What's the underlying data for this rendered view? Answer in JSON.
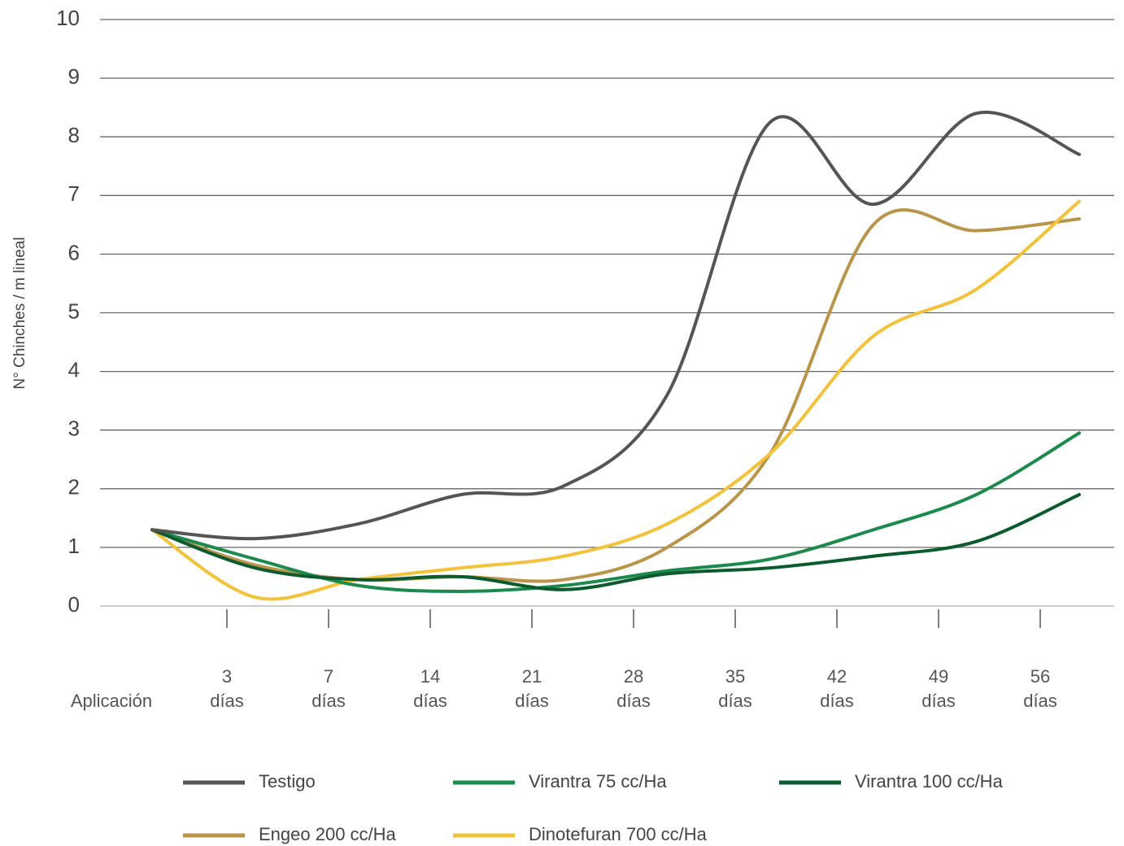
{
  "chart_data": {
    "type": "line",
    "ylabel": "N° Chinches / m lineal",
    "categories": [
      "Aplicación",
      "3\ndías",
      "7\ndías",
      "14\ndías",
      "21\ndías",
      "28\ndías",
      "35\ndías",
      "42\ndías",
      "49\ndías",
      "56\ndías"
    ],
    "ylim": [
      0,
      10
    ],
    "yticks": [
      0,
      1,
      2,
      3,
      4,
      5,
      6,
      7,
      8,
      9,
      10
    ],
    "grid": true,
    "series": [
      {
        "name": "Testigo",
        "color": "#555555",
        "values": [
          1.3,
          1.15,
          1.4,
          1.9,
          2.05,
          3.6,
          8.25,
          6.85,
          8.4,
          7.7
        ]
      },
      {
        "name": "Virantra 75 cc/Ha",
        "color": "#1b8a4c",
        "values": [
          1.3,
          0.8,
          0.35,
          0.25,
          0.35,
          0.6,
          0.8,
          1.3,
          1.9,
          2.95
        ]
      },
      {
        "name": "Virantra 100 cc/Ha",
        "color": "#0c5a2d",
        "values": [
          1.3,
          0.65,
          0.45,
          0.5,
          0.28,
          0.55,
          0.65,
          0.85,
          1.1,
          1.9
        ]
      },
      {
        "name": "Engeo 200 cc/Ha",
        "color": "#b8954a",
        "values": [
          1.3,
          0.7,
          0.45,
          0.5,
          0.45,
          1.0,
          2.6,
          6.5,
          6.4,
          6.6
        ]
      },
      {
        "name": "Dinotefuran 700 cc/Ha",
        "color": "#f2c23a",
        "values": [
          1.3,
          0.15,
          0.45,
          0.65,
          0.85,
          1.4,
          2.6,
          4.6,
          5.4,
          6.9
        ]
      }
    ]
  }
}
